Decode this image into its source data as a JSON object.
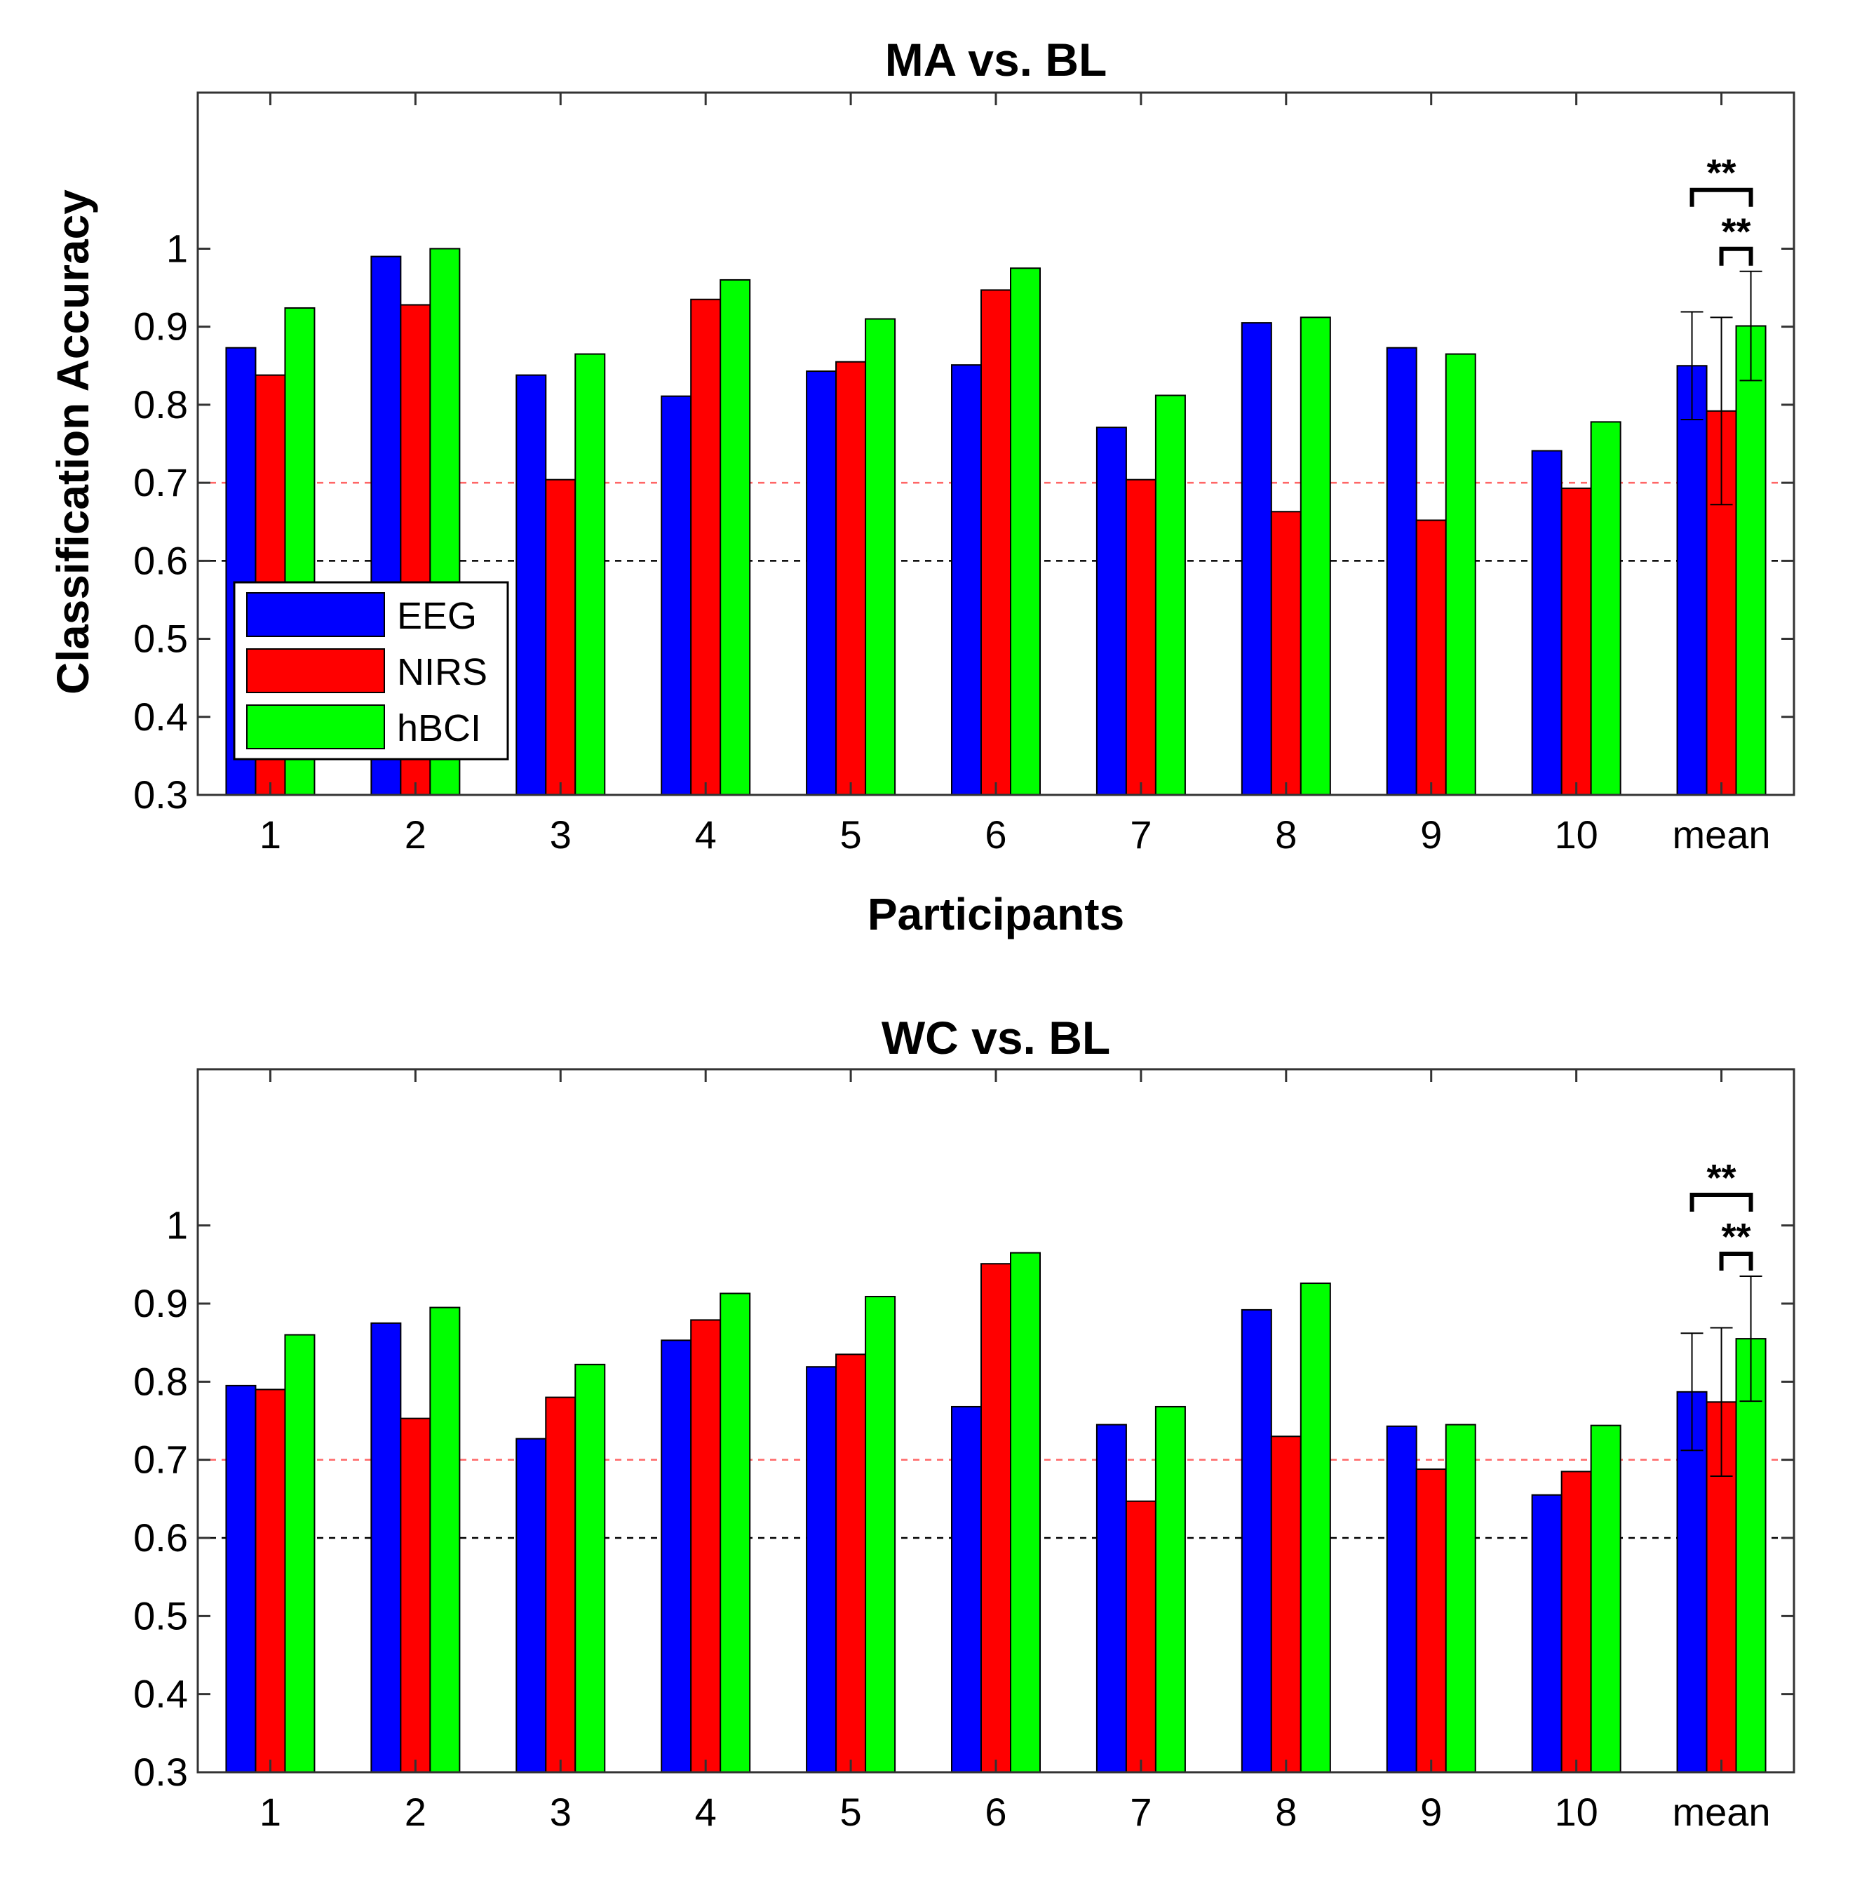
{
  "chart_data": [
    {
      "type": "bar",
      "title": "MA vs. BL",
      "xlabel": "Participants",
      "ylabel": "Classification Accuracy",
      "categories": [
        "1",
        "2",
        "3",
        "4",
        "5",
        "6",
        "7",
        "8",
        "9",
        "10",
        "mean"
      ],
      "ylim": [
        0.3,
        1.2
      ],
      "yticks": [
        "0.3",
        "0.4",
        "0.5",
        "0.6",
        "0.7",
        "0.8",
        "0.9",
        "1"
      ],
      "series": [
        {
          "name": "EEG",
          "color": "#0000ff",
          "values": [
            0.873,
            0.99,
            0.838,
            0.811,
            0.843,
            0.851,
            0.771,
            0.905,
            0.873,
            0.741,
            0.85
          ]
        },
        {
          "name": "NIRS",
          "color": "#ff0000",
          "values": [
            0.838,
            0.928,
            0.704,
            0.935,
            0.855,
            0.947,
            0.704,
            0.663,
            0.652,
            0.693,
            0.792
          ]
        },
        {
          "name": "hBCI",
          "color": "#00ff00",
          "values": [
            0.924,
            1.0,
            0.865,
            0.96,
            0.91,
            0.975,
            0.812,
            0.912,
            0.865,
            0.778,
            0.901
          ]
        }
      ],
      "error_bars": {
        "category": "mean",
        "errors": [
          0.069,
          0.12,
          0.07
        ]
      },
      "reference_lines": [
        {
          "y": 0.7,
          "color": "#ff6666",
          "style": "dashed"
        },
        {
          "y": 0.6,
          "color": "#000000",
          "style": "dashed"
        }
      ],
      "significance": [
        {
          "label": "**",
          "between": [
            "EEG",
            "hBCI"
          ]
        },
        {
          "label": "**",
          "between": [
            "NIRS",
            "hBCI"
          ]
        }
      ],
      "legend": {
        "position": "bottom-left",
        "entries": [
          "EEG",
          "NIRS",
          "hBCI"
        ]
      },
      "grid": false
    },
    {
      "type": "bar",
      "title": "WC vs. BL",
      "xlabel": "",
      "ylabel": "",
      "categories": [
        "1",
        "2",
        "3",
        "4",
        "5",
        "6",
        "7",
        "8",
        "9",
        "10",
        "mean"
      ],
      "ylim": [
        0.3,
        1.2
      ],
      "yticks": [
        "0.3",
        "0.4",
        "0.5",
        "0.6",
        "0.7",
        "0.8",
        "0.9",
        "1"
      ],
      "series": [
        {
          "name": "EEG",
          "color": "#0000ff",
          "values": [
            0.795,
            0.875,
            0.727,
            0.853,
            0.819,
            0.768,
            0.745,
            0.892,
            0.743,
            0.655,
            0.787
          ]
        },
        {
          "name": "NIRS",
          "color": "#ff0000",
          "values": [
            0.79,
            0.753,
            0.78,
            0.879,
            0.835,
            0.951,
            0.647,
            0.73,
            0.688,
            0.685,
            0.774
          ]
        },
        {
          "name": "hBCI",
          "color": "#00ff00",
          "values": [
            0.86,
            0.895,
            0.822,
            0.913,
            0.909,
            0.965,
            0.768,
            0.926,
            0.745,
            0.744,
            0.855
          ]
        }
      ],
      "error_bars": {
        "category": "mean",
        "errors": [
          0.075,
          0.095,
          0.08
        ]
      },
      "reference_lines": [
        {
          "y": 0.7,
          "color": "#ff6666",
          "style": "dashed"
        },
        {
          "y": 0.6,
          "color": "#000000",
          "style": "dashed"
        }
      ],
      "significance": [
        {
          "label": "**",
          "between": [
            "EEG",
            "hBCI"
          ]
        },
        {
          "label": "**",
          "between": [
            "NIRS",
            "hBCI"
          ]
        }
      ],
      "grid": false
    }
  ]
}
